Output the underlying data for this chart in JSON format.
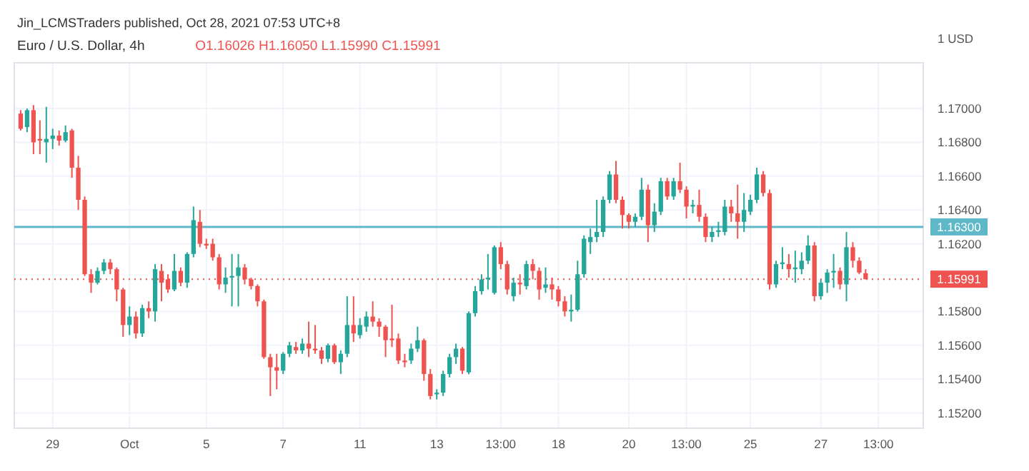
{
  "chart_data": {
    "type": "candlestick",
    "title": "Euro / U.S. Dollar, 4h",
    "subtitle": "O1.16026 H1.16050 L1.15990 C1.15991",
    "ylabel": "1 USD",
    "annotations": [
      "Jin_LCMSTraders published, Oct 28, 2021 07:53 UTC+8"
    ],
    "categories": [
      null,
      null,
      null,
      null,
      null,
      "29",
      null,
      null,
      null,
      null,
      null,
      null,
      null,
      null,
      null,
      null,
      null,
      "Oct",
      null,
      null,
      null,
      null,
      null,
      null,
      null,
      null,
      null,
      null,
      null,
      "5",
      null,
      null,
      null,
      null,
      null,
      null,
      null,
      null,
      null,
      null,
      null,
      "7",
      null,
      null,
      null,
      null,
      null,
      null,
      null,
      null,
      null,
      null,
      null,
      "11",
      null,
      null,
      null,
      null,
      null,
      null,
      null,
      null,
      null,
      null,
      null,
      "13",
      null,
      null,
      null,
      null,
      null,
      null,
      null,
      null,
      null,
      "13:00",
      null,
      null,
      null,
      null,
      null,
      null,
      null,
      null,
      "18",
      null,
      null,
      null,
      null,
      null,
      null,
      null,
      null,
      null,
      null,
      "20",
      null,
      null,
      null,
      null,
      null,
      null,
      null,
      null,
      "13:00",
      null,
      null,
      null,
      null,
      null,
      null,
      null,
      null,
      null,
      "25",
      null,
      null,
      null,
      null,
      null,
      null,
      null,
      null,
      null,
      null,
      "27",
      null,
      null,
      null,
      null,
      null,
      null,
      null,
      null,
      "13:00",
      null,
      null,
      null,
      null,
      null,
      null,
      null
    ],
    "ohlc": [
      [
        1.1697,
        1.1699,
        1.1687,
        1.1688
      ],
      [
        1.1689,
        1.17,
        1.1686,
        1.1699
      ],
      [
        1.1699,
        1.1702,
        1.1673,
        1.168
      ],
      [
        1.1682,
        1.1693,
        1.1673,
        1.1681
      ],
      [
        1.168,
        1.1701,
        1.1668,
        1.1682
      ],
      [
        1.1682,
        1.1688,
        1.1676,
        1.1684
      ],
      [
        1.1684,
        1.1687,
        1.1678,
        1.1681
      ],
      [
        1.1681,
        1.169,
        1.168,
        1.1686
      ],
      [
        1.1687,
        1.1688,
        1.1659,
        1.1665
      ],
      [
        1.1665,
        1.1672,
        1.164,
        1.1646
      ],
      [
        1.1646,
        1.1648,
        1.1601,
        1.1602
      ],
      [
        1.1602,
        1.1605,
        1.1591,
        1.1597
      ],
      [
        1.1597,
        1.1606,
        1.1596,
        1.1604
      ],
      [
        1.1604,
        1.1611,
        1.1602,
        1.1609
      ],
      [
        1.1609,
        1.1611,
        1.1602,
        1.1605
      ],
      [
        1.1605,
        1.1606,
        1.1586,
        1.1593
      ],
      [
        1.1593,
        1.1594,
        1.1565,
        1.1572
      ],
      [
        1.1572,
        1.1583,
        1.1566,
        1.1577
      ],
      [
        1.1577,
        1.158,
        1.1564,
        1.1567
      ],
      [
        1.1567,
        1.1584,
        1.1565,
        1.1582
      ],
      [
        1.1582,
        1.1586,
        1.1576,
        1.158
      ],
      [
        1.158,
        1.1608,
        1.1574,
        1.1605
      ],
      [
        1.1604,
        1.1608,
        1.1586,
        1.1597
      ],
      [
        1.1599,
        1.1602,
        1.1591,
        1.1593
      ],
      [
        1.1593,
        1.1614,
        1.1592,
        1.1604
      ],
      [
        1.1604,
        1.1606,
        1.1595,
        1.1597
      ],
      [
        1.1597,
        1.1615,
        1.1594,
        1.1614
      ],
      [
        1.1614,
        1.1642,
        1.1612,
        1.1634
      ],
      [
        1.1633,
        1.164,
        1.1618,
        1.162
      ],
      [
        1.162,
        1.1623,
        1.1617,
        1.1619
      ],
      [
        1.162,
        1.1623,
        1.161,
        1.1612
      ],
      [
        1.1612,
        1.1614,
        1.1593,
        1.1596
      ],
      [
        1.1596,
        1.1606,
        1.1591,
        1.16
      ],
      [
        1.16,
        1.1614,
        1.1583,
        1.1601
      ],
      [
        1.1601,
        1.1614,
        1.1583,
        1.1606
      ],
      [
        1.1606,
        1.1608,
        1.1596,
        1.1599
      ],
      [
        1.1599,
        1.16,
        1.1593,
        1.1595
      ],
      [
        1.1595,
        1.1596,
        1.1583,
        1.1586
      ],
      [
        1.1586,
        1.1587,
        1.1552,
        1.1553
      ],
      [
        1.1553,
        1.1555,
        1.153,
        1.1547
      ],
      [
        1.1547,
        1.1555,
        1.1534,
        1.1545
      ],
      [
        1.1545,
        1.1556,
        1.1543,
        1.1555
      ],
      [
        1.1555,
        1.1562,
        1.1553,
        1.156
      ],
      [
        1.1559,
        1.1562,
        1.1555,
        1.1557
      ],
      [
        1.1557,
        1.1564,
        1.1555,
        1.1561
      ],
      [
        1.1561,
        1.1574,
        1.1553,
        1.1558
      ],
      [
        1.1558,
        1.1572,
        1.1555,
        1.1557
      ],
      [
        1.1557,
        1.1559,
        1.1549,
        1.1552
      ],
      [
        1.1552,
        1.1561,
        1.155,
        1.156
      ],
      [
        1.156,
        1.1561,
        1.1549,
        1.155
      ],
      [
        1.155,
        1.1557,
        1.1543,
        1.1555
      ],
      [
        1.1555,
        1.1589,
        1.1553,
        1.1572
      ],
      [
        1.1572,
        1.1589,
        1.1562,
        1.1567
      ],
      [
        1.1566,
        1.1576,
        1.1564,
        1.1572
      ],
      [
        1.1571,
        1.158,
        1.1568,
        1.1577
      ],
      [
        1.1577,
        1.1586,
        1.1571,
        1.1574
      ],
      [
        1.1574,
        1.1576,
        1.1565,
        1.1571
      ],
      [
        1.1571,
        1.1572,
        1.1553,
        1.1563
      ],
      [
        1.1564,
        1.1584,
        1.1559,
        1.1563
      ],
      [
        1.1564,
        1.1567,
        1.1549,
        1.1551
      ],
      [
        1.1551,
        1.1555,
        1.1547,
        1.155
      ],
      [
        1.1551,
        1.1561,
        1.1549,
        1.1558
      ],
      [
        1.1558,
        1.1571,
        1.1556,
        1.1563
      ],
      [
        1.1563,
        1.1564,
        1.1539,
        1.1543
      ],
      [
        1.1543,
        1.1546,
        1.1528,
        1.153
      ],
      [
        1.1531,
        1.1534,
        1.1528,
        1.1532
      ],
      [
        1.1532,
        1.1545,
        1.153,
        1.1543
      ],
      [
        1.1543,
        1.1555,
        1.1541,
        1.1553
      ],
      [
        1.1553,
        1.1561,
        1.1549,
        1.1558
      ],
      [
        1.1558,
        1.1559,
        1.1543,
        1.1545
      ],
      [
        1.1544,
        1.158,
        1.1543,
        1.1579
      ],
      [
        1.1579,
        1.1595,
        1.1577,
        1.1592
      ],
      [
        1.1592,
        1.1602,
        1.159,
        1.1599
      ],
      [
        1.1599,
        1.1614,
        1.1593,
        1.16
      ],
      [
        1.1591,
        1.1619,
        1.159,
        1.1618
      ],
      [
        1.1618,
        1.1621,
        1.1605,
        1.1608
      ],
      [
        1.1608,
        1.161,
        1.159,
        1.1593
      ],
      [
        1.1589,
        1.16,
        1.1586,
        1.1597
      ],
      [
        1.1597,
        1.1602,
        1.159,
        1.1596
      ],
      [
        1.1595,
        1.161,
        1.1593,
        1.1608
      ],
      [
        1.1608,
        1.1611,
        1.1599,
        1.1604
      ],
      [
        1.1604,
        1.1606,
        1.1587,
        1.1593
      ],
      [
        1.1594,
        1.1606,
        1.1591,
        1.1596
      ],
      [
        1.1596,
        1.16,
        1.1587,
        1.1593
      ],
      [
        1.1593,
        1.1595,
        1.1583,
        1.1586
      ],
      [
        1.1586,
        1.1589,
        1.1577,
        1.158
      ],
      [
        1.158,
        1.159,
        1.1574,
        1.1581
      ],
      [
        1.1581,
        1.161,
        1.158,
        1.1602
      ],
      [
        1.1602,
        1.1625,
        1.16,
        1.1623
      ],
      [
        1.1621,
        1.1629,
        1.1614,
        1.1624
      ],
      [
        1.1624,
        1.1646,
        1.1621,
        1.1627
      ],
      [
        1.1627,
        1.1648,
        1.1624,
        1.1646
      ],
      [
        1.1646,
        1.1663,
        1.1644,
        1.1661
      ],
      [
        1.1661,
        1.1669,
        1.1644,
        1.1646
      ],
      [
        1.1646,
        1.1648,
        1.1629,
        1.1637
      ],
      [
        1.1637,
        1.1638,
        1.1629,
        1.1633
      ],
      [
        1.1633,
        1.1638,
        1.163,
        1.1636
      ],
      [
        1.1636,
        1.1659,
        1.1634,
        1.1652
      ],
      [
        1.1652,
        1.1655,
        1.1621,
        1.1631
      ],
      [
        1.1631,
        1.1644,
        1.1627,
        1.1639
      ],
      [
        1.1639,
        1.1659,
        1.1637,
        1.1657
      ],
      [
        1.1657,
        1.1659,
        1.1646,
        1.1648
      ],
      [
        1.1648,
        1.1659,
        1.1646,
        1.1657
      ],
      [
        1.1657,
        1.1668,
        1.165,
        1.1652
      ],
      [
        1.1652,
        1.1654,
        1.1635,
        1.1642
      ],
      [
        1.1642,
        1.1646,
        1.1638,
        1.1643
      ],
      [
        1.1643,
        1.1652,
        1.1633,
        1.1636
      ],
      [
        1.1636,
        1.1638,
        1.1621,
        1.1624
      ],
      [
        1.1624,
        1.163,
        1.1621,
        1.1627
      ],
      [
        1.1627,
        1.1633,
        1.1624,
        1.1628
      ],
      [
        1.1627,
        1.1646,
        1.1625,
        1.1642
      ],
      [
        1.1642,
        1.1646,
        1.1633,
        1.1638
      ],
      [
        1.1638,
        1.1655,
        1.1623,
        1.1633
      ],
      [
        1.1633,
        1.165,
        1.1627,
        1.164
      ],
      [
        1.1639,
        1.1649,
        1.1637,
        1.1646
      ],
      [
        1.1646,
        1.1665,
        1.1644,
        1.1661
      ],
      [
        1.1661,
        1.1663,
        1.1648,
        1.165
      ],
      [
        1.165,
        1.1652,
        1.1593,
        1.1596
      ],
      [
        1.1596,
        1.161,
        1.1594,
        1.1608
      ],
      [
        1.1608,
        1.1618,
        1.1605,
        1.1609
      ],
      [
        1.1608,
        1.1614,
        1.16,
        1.1605
      ],
      [
        1.1605,
        1.1616,
        1.1597,
        1.1606
      ],
      [
        1.1605,
        1.1615,
        1.1602,
        1.161
      ],
      [
        1.161,
        1.1625,
        1.1608,
        1.1619
      ],
      [
        1.1619,
        1.1621,
        1.1586,
        1.1589
      ],
      [
        1.1589,
        1.1599,
        1.1587,
        1.1597
      ],
      [
        1.1597,
        1.1605,
        1.1591,
        1.1603
      ],
      [
        1.1603,
        1.1614,
        1.1594,
        1.1604
      ],
      [
        1.1604,
        1.1606,
        1.1593,
        1.1596
      ],
      [
        1.1596,
        1.1627,
        1.1586,
        1.1618
      ],
      [
        1.1618,
        1.1621,
        1.1606,
        1.161
      ],
      [
        1.161,
        1.1612,
        1.1602,
        1.1603
      ],
      [
        1.16026,
        1.1605,
        1.1599,
        1.15991
      ],
      null,
      null,
      null,
      null,
      null,
      null,
      null,
      null,
      null
    ],
    "colors": [
      "#ef5350",
      "#26a69a",
      "#ef5350",
      "#ef5350",
      "#26a69a",
      "#26a69a",
      "#ef5350",
      "#26a69a",
      "#ef5350",
      "#ef5350",
      "#ef5350",
      "#ef5350",
      "#26a69a",
      "#26a69a",
      "#ef5350",
      "#ef5350",
      "#ef5350",
      "#26a69a",
      "#ef5350",
      "#26a69a",
      "#ef5350",
      "#26a69a",
      "#ef5350",
      "#ef5350",
      "#26a69a",
      "#ef5350",
      "#26a69a",
      "#26a69a",
      "#ef5350",
      "#ef5350",
      "#ef5350",
      "#ef5350",
      "#26a69a",
      "#26a69a",
      "#26a69a",
      "#ef5350",
      "#ef5350",
      "#ef5350",
      "#ef5350",
      "#ef5350",
      "#ef5350",
      "#26a69a",
      "#26a69a",
      "#ef5350",
      "#26a69a",
      "#ef5350",
      "#ef5350",
      "#ef5350",
      "#26a69a",
      "#ef5350",
      "#26a69a",
      "#26a69a",
      "#ef5350",
      "#26a69a",
      "#26a69a",
      "#ef5350",
      "#ef5350",
      "#ef5350",
      "#ef5350",
      "#ef5350",
      "#ef5350",
      "#26a69a",
      "#26a69a",
      "#ef5350",
      "#ef5350",
      "#26a69a",
      "#26a69a",
      "#26a69a",
      "#26a69a",
      "#ef5350",
      "#26a69a",
      "#26a69a",
      "#26a69a",
      "#26a69a",
      "#26a69a",
      "#ef5350",
      "#ef5350",
      "#26a69a",
      "#ef5350",
      "#26a69a",
      "#ef5350",
      "#ef5350",
      "#26a69a",
      "#ef5350",
      "#ef5350",
      "#ef5350",
      "#26a69a",
      "#26a69a",
      "#26a69a",
      "#26a69a",
      "#26a69a",
      "#26a69a",
      "#26a69a",
      "#ef5350",
      "#ef5350",
      "#ef5350",
      "#26a69a",
      "#26a69a",
      "#ef5350",
      "#26a69a",
      "#26a69a",
      "#ef5350",
      "#26a69a",
      "#ef5350",
      "#ef5350",
      "#26a69a",
      "#ef5350",
      "#ef5350",
      "#26a69a",
      "#26a69a",
      "#26a69a",
      "#ef5350",
      "#ef5350",
      "#26a69a",
      "#26a69a",
      "#26a69a",
      "#ef5350",
      "#ef5350",
      "#26a69a",
      "#26a69a",
      "#ef5350",
      "#26a69a",
      "#26a69a",
      "#26a69a",
      "#ef5350",
      "#26a69a",
      "#26a69a",
      "#26a69a",
      "#ef5350",
      "#26a69a",
      "#ef5350",
      "#ef5350",
      "#ef5350",
      null,
      null,
      null,
      null,
      null,
      null,
      null,
      null,
      null
    ],
    "ylim": [
      1.1511,
      1.1727
    ],
    "yticks": [
      {
        "value": 1.152,
        "label": "1.15200"
      },
      {
        "value": 1.154,
        "label": "1.15400"
      },
      {
        "value": 1.156,
        "label": "1.15600"
      },
      {
        "value": 1.158,
        "label": "1.15800"
      },
      {
        "value": 1.162,
        "label": "1.16200"
      },
      {
        "value": 1.164,
        "label": "1.16400"
      },
      {
        "value": 1.166,
        "label": "1.16600"
      },
      {
        "value": 1.168,
        "label": "1.16800"
      },
      {
        "value": 1.17,
        "label": "1.17000"
      }
    ],
    "ref_lines": [
      {
        "axis": "y",
        "value": 1.163,
        "label": "1.16300",
        "color": "#5fb8c8",
        "line_style": "solid"
      },
      {
        "axis": "y",
        "value": 1.15991,
        "label": "1.15991",
        "color": "#ef5350",
        "line_style": "dotted"
      }
    ],
    "grid": true
  }
}
